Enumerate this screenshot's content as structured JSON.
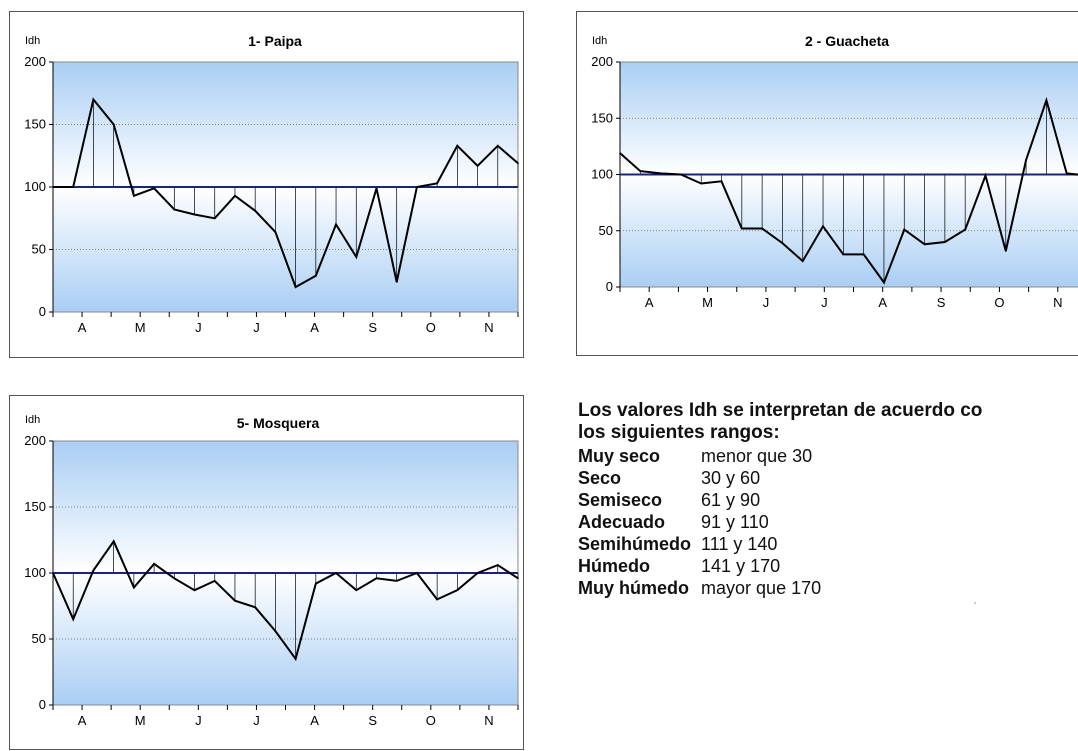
{
  "chart_data": [
    {
      "type": "line",
      "title": "1- Paipa",
      "ylabel": "Idh",
      "xlabel": "",
      "ylim": [
        0,
        200
      ],
      "yticks": [
        0,
        50,
        100,
        150,
        200
      ],
      "xtick_labels": [
        "A",
        "M",
        "J",
        "J",
        "A",
        "S",
        "O",
        "N"
      ],
      "reference_line": 100,
      "grid": true,
      "values": [
        100,
        100,
        170,
        150,
        93,
        99,
        82,
        78,
        75,
        93,
        81,
        64,
        20,
        29,
        70,
        44,
        99,
        24,
        100,
        103,
        133,
        117,
        133,
        119
      ]
    },
    {
      "type": "line",
      "title": "2 - Guacheta",
      "ylabel": "Idh",
      "xlabel": "",
      "ylim": [
        0,
        200
      ],
      "yticks": [
        0,
        50,
        100,
        150,
        200
      ],
      "xtick_labels": [
        "A",
        "M",
        "J",
        "J",
        "A",
        "S",
        "O",
        "N"
      ],
      "reference_line": 100,
      "grid": true,
      "values": [
        119,
        103,
        101,
        100,
        92,
        94,
        52,
        52,
        39,
        23,
        54,
        29,
        29,
        4,
        51,
        38,
        40,
        51,
        99,
        32,
        113,
        166,
        101,
        99
      ]
    },
    {
      "type": "line",
      "title": "5- Mosquera",
      "ylabel": "Idh",
      "xlabel": "",
      "ylim": [
        0,
        200
      ],
      "yticks": [
        0,
        50,
        100,
        150,
        200
      ],
      "xtick_labels": [
        "A",
        "M",
        "J",
        "J",
        "A",
        "S",
        "O",
        "N"
      ],
      "reference_line": 100,
      "grid": true,
      "values": [
        100,
        65,
        102,
        124,
        89,
        107,
        96,
        87,
        94,
        79,
        74,
        56,
        35,
        92,
        100,
        87,
        96,
        94,
        100,
        80,
        87,
        100,
        106,
        96
      ]
    }
  ],
  "legend": {
    "intro_line1": "Los valores Idh se interpretan de acuerdo co",
    "intro_line2": "los siguientes rangos:",
    "ranges": [
      {
        "name": "Muy seco",
        "range": "menor que 30"
      },
      {
        "name": "Seco",
        "range": "30 y 60"
      },
      {
        "name": "Semiseco",
        "range": "61 y 90"
      },
      {
        "name": "Adecuado",
        "range": "91 y 110"
      },
      {
        "name": "Semihúmedo",
        "range": "111 y 140"
      },
      {
        "name": "Húmedo",
        "range": "141 y 170"
      },
      {
        "name": "Muy húmedo",
        "range": "mayor que 170"
      }
    ]
  },
  "colors": {
    "plot_top": "#a9cef4",
    "plot_bottom": "#a9cef4",
    "plot_mid": "#ffffff",
    "reference_line": "#1a237e",
    "series_line": "#000000",
    "gridline": "#666666"
  }
}
